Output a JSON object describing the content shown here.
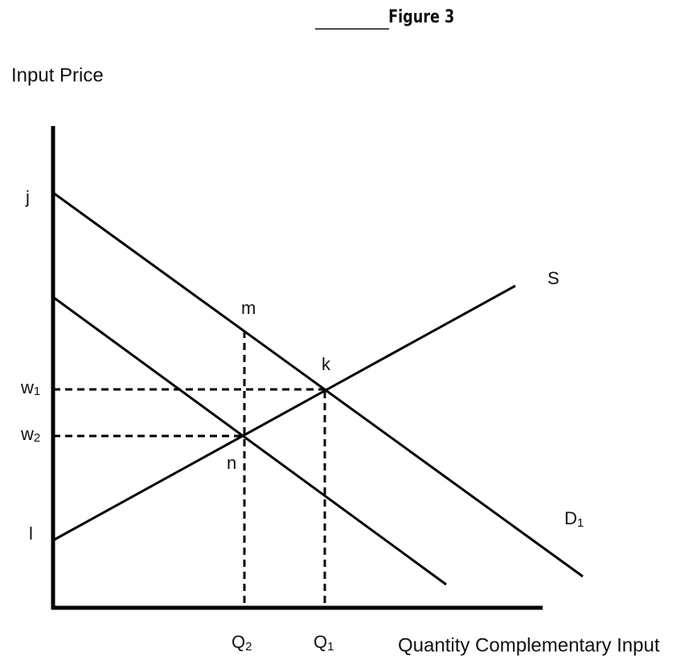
{
  "title": "Figure 3",
  "axes": {
    "y_label": "Input Price",
    "x_label": "Quantity Complementary Input"
  },
  "points": {
    "j": "j",
    "m": "m",
    "k": "k",
    "n": "n",
    "l": "l",
    "w1": {
      "text": "w",
      "sub": "1"
    },
    "w2": {
      "text": "w",
      "sub": "2"
    },
    "q1": {
      "text": "Q",
      "sub": "1"
    },
    "q2": {
      "text": "Q",
      "sub": "2"
    }
  },
  "curves": {
    "supply": "S",
    "demand": {
      "text": "D",
      "sub": "1"
    }
  }
}
